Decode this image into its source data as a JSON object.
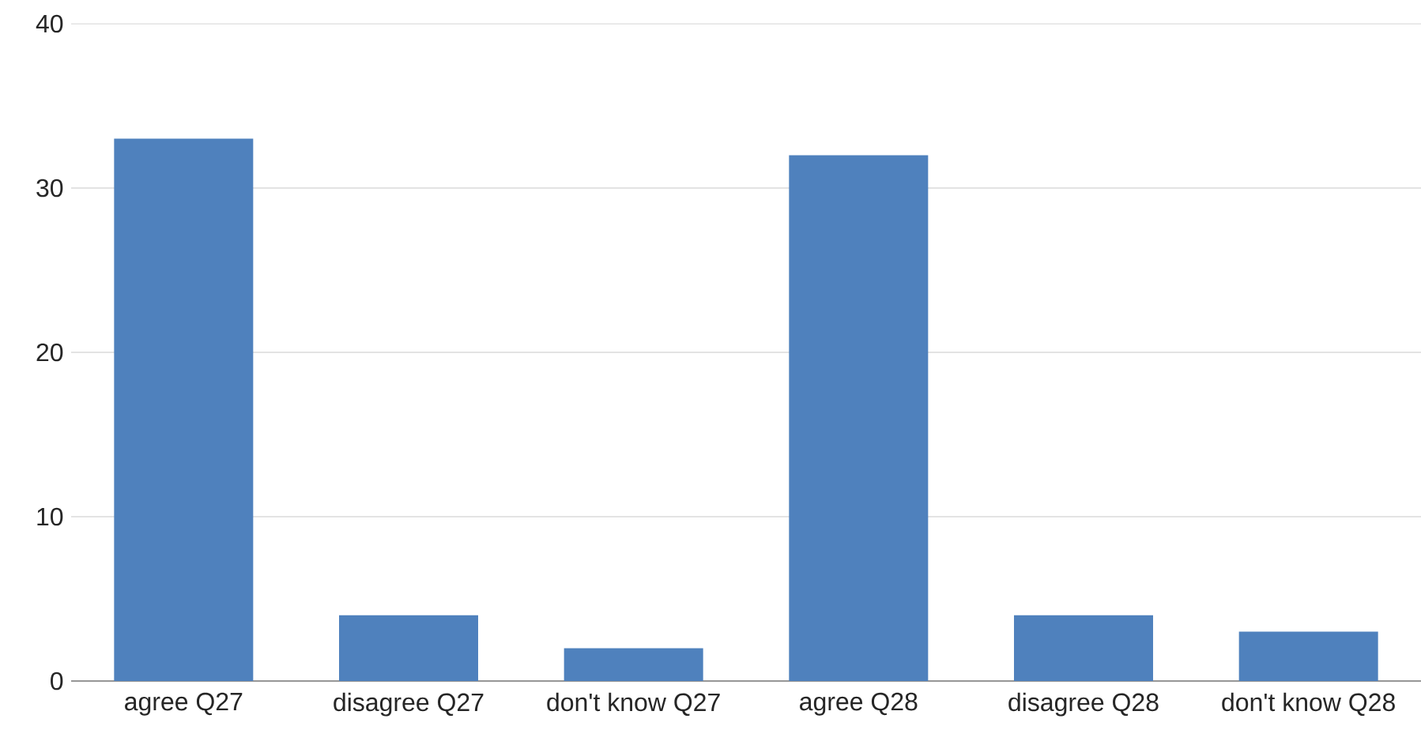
{
  "chart_data": {
    "type": "bar",
    "categories": [
      "agree Q27",
      "disagree Q27",
      "don't know Q27",
      "agree Q28",
      "disagree Q28",
      "don't know Q28"
    ],
    "values": [
      33,
      4,
      2,
      32,
      4,
      3
    ],
    "color": "#4f81bd",
    "ylim": [
      0,
      40
    ],
    "yticks": [
      0,
      10,
      20,
      30,
      40
    ],
    "grid": "y"
  }
}
